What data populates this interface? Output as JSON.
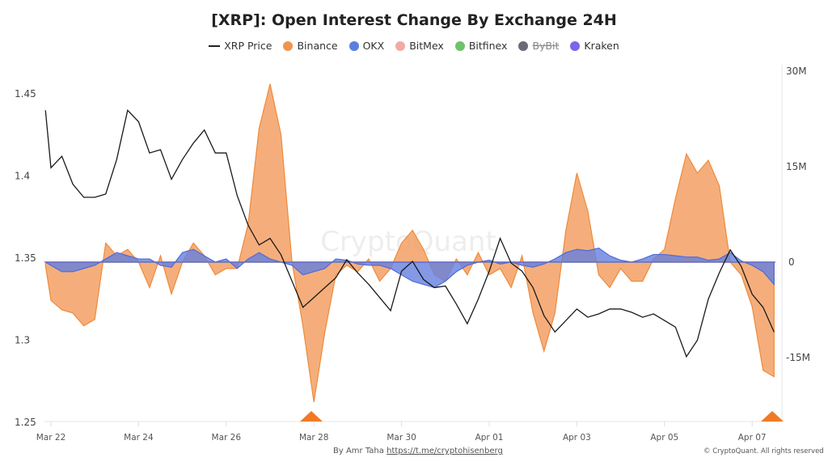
{
  "chart_data": {
    "type": "area",
    "title": "[XRP]: Open Interest Change By Exchange 24H",
    "legend": [
      {
        "name": "XRP Price",
        "color": "#222222",
        "marker": "line",
        "hidden": false
      },
      {
        "name": "Binance",
        "color": "#f0954f",
        "marker": "dot",
        "hidden": false
      },
      {
        "name": "OKX",
        "color": "#5a7fe0",
        "marker": "dot",
        "hidden": false
      },
      {
        "name": "BitMex",
        "color": "#f2aaa6",
        "marker": "dot",
        "hidden": false
      },
      {
        "name": "Bitfinex",
        "color": "#6cc36a",
        "marker": "dot",
        "hidden": false
      },
      {
        "name": "ByBit",
        "color": "#6b6b78",
        "marker": "dot",
        "hidden": true
      },
      {
        "name": "Kraken",
        "color": "#7a66e8",
        "marker": "dot",
        "hidden": false
      }
    ],
    "legend_position": "top",
    "left_axis": {
      "ticks": [
        "1.25",
        "1.3",
        "1.35",
        "1.4",
        "1.45"
      ],
      "range": [
        1.25,
        1.46
      ]
    },
    "right_axis": {
      "ticks": [
        "30M",
        "15M",
        "0",
        "-15M"
      ],
      "range_millions": [
        -25,
        30
      ]
    },
    "x_ticks": [
      "Mar 22",
      "Mar 24",
      "Mar 26",
      "Mar 28",
      "Mar 30",
      "Apr 01",
      "Apr 03",
      "Apr 05",
      "Apr 07"
    ],
    "x": [
      "Mar 21 21:00",
      "Mar 22 00:00",
      "Mar 22 06:00",
      "Mar 22 12:00",
      "Mar 22 18:00",
      "Mar 23 00:00",
      "Mar 23 06:00",
      "Mar 23 12:00",
      "Mar 23 18:00",
      "Mar 24 00:00",
      "Mar 24 06:00",
      "Mar 24 12:00",
      "Mar 24 18:00",
      "Mar 25 00:00",
      "Mar 25 06:00",
      "Mar 25 12:00",
      "Mar 25 18:00",
      "Mar 26 00:00",
      "Mar 26 06:00",
      "Mar 26 12:00",
      "Mar 26 18:00",
      "Mar 27 00:00",
      "Mar 27 06:00",
      "Mar 27 12:00",
      "Mar 27 18:00",
      "Mar 28 00:00",
      "Mar 28 06:00",
      "Mar 28 12:00",
      "Mar 28 18:00",
      "Mar 29 00:00",
      "Mar 29 06:00",
      "Mar 29 12:00",
      "Mar 29 18:00",
      "Mar 30 00:00",
      "Mar 30 06:00",
      "Mar 30 12:00",
      "Mar 30 18:00",
      "Mar 31 00:00",
      "Mar 31 06:00",
      "Mar 31 12:00",
      "Mar 31 18:00",
      "Apr 01 00:00",
      "Apr 01 06:00",
      "Apr 01 12:00",
      "Apr 01 18:00",
      "Apr 02 00:00",
      "Apr 02 06:00",
      "Apr 02 12:00",
      "Apr 02 18:00",
      "Apr 03 00:00",
      "Apr 03 06:00",
      "Apr 03 12:00",
      "Apr 03 18:00",
      "Apr 04 00:00",
      "Apr 04 06:00",
      "Apr 04 12:00",
      "Apr 04 18:00",
      "Apr 05 00:00",
      "Apr 05 06:00",
      "Apr 05 12:00",
      "Apr 05 18:00",
      "Apr 06 00:00",
      "Apr 06 06:00",
      "Apr 06 12:00",
      "Apr 06 18:00",
      "Apr 07 00:00",
      "Apr 07 06:00",
      "Apr 07 12:00"
    ],
    "series": [
      {
        "name": "XRP Price",
        "axis": "left",
        "values": [
          1.44,
          1.405,
          1.412,
          1.395,
          1.387,
          1.387,
          1.389,
          1.41,
          1.44,
          1.433,
          1.414,
          1.416,
          1.398,
          1.41,
          1.42,
          1.428,
          1.414,
          1.414,
          1.388,
          1.37,
          1.358,
          1.362,
          1.352,
          1.336,
          1.32,
          1.326,
          1.332,
          1.338,
          1.349,
          1.341,
          1.334,
          1.326,
          1.318,
          1.342,
          1.348,
          1.337,
          1.332,
          1.333,
          1.322,
          1.31,
          1.325,
          1.342,
          1.362,
          1.347,
          1.342,
          1.332,
          1.315,
          1.305,
          1.312,
          1.319,
          1.314,
          1.316,
          1.319,
          1.319,
          1.317,
          1.314,
          1.316,
          1.312,
          1.308,
          1.29,
          1.3,
          1.325,
          1.341,
          1.355,
          1.345,
          1.328,
          1.32,
          1.305
        ]
      },
      {
        "name": "Binance",
        "axis": "right",
        "unit": "M",
        "values": [
          -0.5,
          -6,
          -7.5,
          -8,
          -10,
          -9,
          3,
          1,
          2,
          0,
          -4,
          1,
          -5,
          0,
          3,
          1,
          -2,
          -1,
          -1,
          6,
          21,
          28,
          20,
          0,
          -10,
          -22,
          -11,
          -2,
          -0.5,
          -1.5,
          0.5,
          -3,
          -1,
          3,
          5,
          2,
          -2,
          -3,
          0.5,
          -2,
          1.5,
          -2,
          -1,
          -4,
          1,
          -8,
          -14,
          -8,
          5,
          14,
          8,
          -2,
          -4,
          -1,
          -3,
          -3,
          0.5,
          2,
          10,
          17,
          14,
          16,
          12,
          0,
          -2,
          -7,
          -17,
          -18
        ]
      },
      {
        "name": "OKX",
        "axis": "right",
        "unit": "M",
        "values": [
          0,
          -0.5,
          -1.5,
          -1.5,
          -1,
          -0.5,
          0.5,
          1.5,
          1,
          0.5,
          0.5,
          -0.5,
          -0.8,
          1.5,
          2,
          1,
          0,
          0.5,
          -1,
          0.5,
          1.5,
          0.5,
          0,
          -0.5,
          -2,
          -1.5,
          -1,
          0.5,
          0.3,
          -0.3,
          -0.5,
          -0.5,
          -1,
          -2,
          -3,
          -3.5,
          -4,
          -3,
          -1.5,
          -0.5,
          0,
          0.3,
          -0.3,
          0,
          -0.5,
          -0.8,
          -0.3,
          0.5,
          1.5,
          2,
          1.8,
          2.2,
          1,
          0.3,
          0,
          0.5,
          1.2,
          1.2,
          1,
          0.8,
          0.8,
          0.3,
          0.5,
          1.5,
          0.2,
          -0.5,
          -1.5,
          -3.5
        ]
      }
    ],
    "watermark": "CryptoQuant"
  },
  "footer": {
    "author": "By Amr Taha",
    "link": "https://t.me/cryptohisenberg",
    "copyright": "© CryptoQuant. All rights reserved"
  }
}
